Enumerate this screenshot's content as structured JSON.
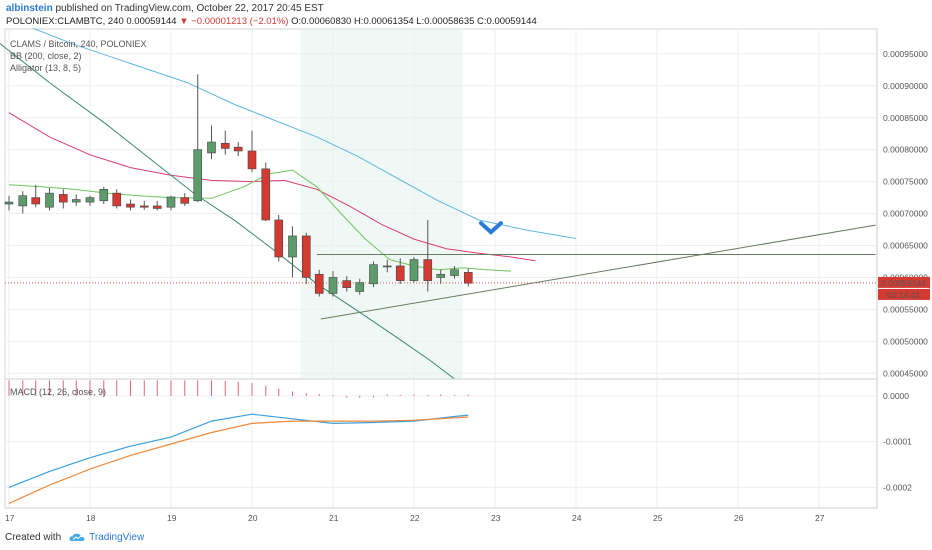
{
  "header": {
    "author": "albinstein",
    "published_text": " published on TradingView.com, October 22, 2017 20:45 EST",
    "symbol_text": "POLONIEX:CLAMBTC, 240 0.00059144",
    "change_text": " ▼ −0.00001213 (−2.01%)",
    "ohlc_text": " O:0.00060830 H:0.00061354 L:0.00058635 C:0.00059144"
  },
  "studies": {
    "main": "CLAMS / Bitcoin, 240, POLONIEX",
    "bb": "BB (200, close, 2)",
    "alligator": "Alligator (13, 8, 5)",
    "macd": "MACD (12, 26, close, 9)"
  },
  "price_badge": "0.00059144",
  "time_badge": "02:14:41",
  "footer": {
    "created": "Created with",
    "brand": "TradingView"
  },
  "colors": {
    "up": "#5d9b6c",
    "down": "#d33b32",
    "bb_upper": "#5fb8e0",
    "bb_mid": "#d83d6e",
    "bb_lower": "#3a8a6e",
    "alligator": "#6dc45c",
    "macd": "#3aa0dc",
    "signal": "#f08a3c",
    "trendline": "#667d5e"
  },
  "chart_data": [
    {
      "type": "candlestick",
      "x_axis": {
        "ticks": [
          "17",
          "18",
          "19",
          "20",
          "21",
          "22",
          "23",
          "24",
          "25",
          "26",
          "27"
        ],
        "range": [
          17,
          27.7
        ]
      },
      "y_axis": {
        "range": [
          0.000441,
          0.000989
        ],
        "ticks": [
          "0.00095000",
          "0.00090000",
          "0.00085000",
          "0.00080000",
          "0.00075000",
          "0.00070000",
          "0.00065000",
          "0.00060000",
          "0.00055000",
          "0.00050000",
          "0.00045000"
        ],
        "tick_values": [
          0.00095,
          0.0009,
          0.00085,
          0.0008,
          0.00075,
          0.0007,
          0.00065,
          0.0006,
          0.00055,
          0.0005,
          0.00045
        ]
      },
      "grid": true,
      "candles": [
        {
          "t": 17.0,
          "o": 0.000715,
          "h": 0.000728,
          "l": 0.000705,
          "c": 0.000718
        },
        {
          "t": 17.17,
          "o": 0.000712,
          "h": 0.000735,
          "l": 0.0007,
          "c": 0.000728
        },
        {
          "t": 17.33,
          "o": 0.000725,
          "h": 0.000745,
          "l": 0.00071,
          "c": 0.000715
        },
        {
          "t": 17.5,
          "o": 0.00071,
          "h": 0.00074,
          "l": 0.000705,
          "c": 0.000732
        },
        {
          "t": 17.67,
          "o": 0.00073,
          "h": 0.000738,
          "l": 0.000708,
          "c": 0.000718
        },
        {
          "t": 17.83,
          "o": 0.000718,
          "h": 0.00073,
          "l": 0.000712,
          "c": 0.000722
        },
        {
          "t": 18.0,
          "o": 0.000718,
          "h": 0.000728,
          "l": 0.000712,
          "c": 0.000725
        },
        {
          "t": 18.17,
          "o": 0.00072,
          "h": 0.000742,
          "l": 0.000715,
          "c": 0.000738
        },
        {
          "t": 18.33,
          "o": 0.000732,
          "h": 0.000738,
          "l": 0.000708,
          "c": 0.000712
        },
        {
          "t": 18.5,
          "o": 0.000715,
          "h": 0.000722,
          "l": 0.000705,
          "c": 0.00071
        },
        {
          "t": 18.67,
          "o": 0.000712,
          "h": 0.00072,
          "l": 0.000706,
          "c": 0.00071
        },
        {
          "t": 18.83,
          "o": 0.000712,
          "h": 0.00072,
          "l": 0.000705,
          "c": 0.000708
        },
        {
          "t": 19.0,
          "o": 0.00071,
          "h": 0.000728,
          "l": 0.000705,
          "c": 0.000726
        },
        {
          "t": 19.17,
          "o": 0.000725,
          "h": 0.000732,
          "l": 0.000712,
          "c": 0.000716
        },
        {
          "t": 19.33,
          "o": 0.00072,
          "h": 0.000918,
          "l": 0.000718,
          "c": 0.0008
        },
        {
          "t": 19.5,
          "o": 0.000795,
          "h": 0.000838,
          "l": 0.000785,
          "c": 0.000812
        },
        {
          "t": 19.67,
          "o": 0.00081,
          "h": 0.00083,
          "l": 0.000792,
          "c": 0.000802
        },
        {
          "t": 19.83,
          "o": 0.000804,
          "h": 0.000812,
          "l": 0.00079,
          "c": 0.000798
        },
        {
          "t": 20.0,
          "o": 0.000798,
          "h": 0.00083,
          "l": 0.000765,
          "c": 0.00077
        },
        {
          "t": 20.17,
          "o": 0.00077,
          "h": 0.00078,
          "l": 0.000688,
          "c": 0.00069
        },
        {
          "t": 20.33,
          "o": 0.00069,
          "h": 0.000698,
          "l": 0.000625,
          "c": 0.000632
        },
        {
          "t": 20.5,
          "o": 0.000632,
          "h": 0.00068,
          "l": 0.0006,
          "c": 0.000665
        },
        {
          "t": 20.67,
          "o": 0.000665,
          "h": 0.00067,
          "l": 0.00059,
          "c": 0.0006
        },
        {
          "t": 20.83,
          "o": 0.000605,
          "h": 0.000612,
          "l": 0.00057,
          "c": 0.000575
        },
        {
          "t": 21.0,
          "o": 0.000575,
          "h": 0.00061,
          "l": 0.00057,
          "c": 0.0006
        },
        {
          "t": 21.17,
          "o": 0.000595,
          "h": 0.000602,
          "l": 0.000578,
          "c": 0.000584
        },
        {
          "t": 21.33,
          "o": 0.000578,
          "h": 0.000598,
          "l": 0.000573,
          "c": 0.000592
        },
        {
          "t": 21.5,
          "o": 0.00059,
          "h": 0.000625,
          "l": 0.000585,
          "c": 0.00062
        },
        {
          "t": 21.67,
          "o": 0.000618,
          "h": 0.000628,
          "l": 0.000608,
          "c": 0.000618
        },
        {
          "t": 21.83,
          "o": 0.000618,
          "h": 0.00063,
          "l": 0.00059,
          "c": 0.000595
        },
        {
          "t": 22.0,
          "o": 0.000595,
          "h": 0.000632,
          "l": 0.000592,
          "c": 0.000628
        },
        {
          "t": 22.17,
          "o": 0.000628,
          "h": 0.00069,
          "l": 0.000578,
          "c": 0.000595
        },
        {
          "t": 22.33,
          "o": 0.0006,
          "h": 0.000612,
          "l": 0.00059,
          "c": 0.000605
        },
        {
          "t": 22.5,
          "o": 0.000603,
          "h": 0.000618,
          "l": 0.000598,
          "c": 0.000612
        },
        {
          "t": 22.67,
          "o": 0.000608,
          "h": 0.000614,
          "l": 0.000586,
          "c": 0.000591
        }
      ],
      "bb_upper": [
        [
          17.3,
          0.00099
        ],
        [
          17.8,
          0.000965
        ],
        [
          18.5,
          0.000935
        ],
        [
          19.2,
          0.000905
        ],
        [
          19.8,
          0.00087
        ],
        [
          20.3,
          0.000845
        ],
        [
          20.8,
          0.00082
        ],
        [
          21.3,
          0.00079
        ],
        [
          21.8,
          0.000755
        ],
        [
          22.3,
          0.00072
        ],
        [
          22.8,
          0.00069
        ],
        [
          23.4,
          0.000674
        ],
        [
          24.0,
          0.000661
        ]
      ],
      "bb_middle": [
        [
          17.0,
          0.000858
        ],
        [
          17.5,
          0.00082
        ],
        [
          18.0,
          0.000792
        ],
        [
          18.5,
          0.000772
        ],
        [
          19.0,
          0.00076
        ],
        [
          19.5,
          0.000752
        ],
        [
          20.0,
          0.00075
        ],
        [
          20.4,
          0.000752
        ],
        [
          20.8,
          0.000738
        ],
        [
          21.2,
          0.000712
        ],
        [
          21.6,
          0.000683
        ],
        [
          22.0,
          0.00066
        ],
        [
          22.4,
          0.000645
        ],
        [
          22.8,
          0.000638
        ],
        [
          23.2,
          0.000632
        ],
        [
          23.5,
          0.000626
        ]
      ],
      "bb_lower": [
        [
          16.8,
          0.000975
        ],
        [
          17.5,
          0.000905
        ],
        [
          18.2,
          0.00084
        ],
        [
          18.8,
          0.00078
        ],
        [
          19.3,
          0.00073
        ],
        [
          19.8,
          0.000688
        ],
        [
          20.3,
          0.00064
        ],
        [
          20.8,
          0.00059
        ],
        [
          21.3,
          0.000548
        ],
        [
          21.8,
          0.000505
        ],
        [
          22.2,
          0.00047
        ],
        [
          22.5,
          0.000441
        ]
      ],
      "alligator": [
        [
          17.0,
          0.000745
        ],
        [
          17.4,
          0.000742
        ],
        [
          17.8,
          0.000738
        ],
        [
          18.2,
          0.000732
        ],
        [
          18.6,
          0.000728
        ],
        [
          19.0,
          0.000725
        ],
        [
          19.5,
          0.000724
        ],
        [
          19.9,
          0.000742
        ],
        [
          20.2,
          0.000762
        ],
        [
          20.5,
          0.000768
        ],
        [
          20.8,
          0.000742
        ],
        [
          21.1,
          0.0007
        ],
        [
          21.4,
          0.00066
        ],
        [
          21.7,
          0.000628
        ],
        [
          22.0,
          0.000618
        ],
        [
          22.3,
          0.000612
        ],
        [
          22.6,
          0.000615
        ],
        [
          22.9,
          0.000612
        ],
        [
          23.2,
          0.00061
        ]
      ],
      "trendlines": [
        {
          "from": [
            20.8,
            0.000636
          ],
          "to": [
            27.7,
            0.000636
          ]
        },
        {
          "from": [
            20.85,
            0.000535
          ],
          "to": [
            27.7,
            0.000682
          ]
        }
      ],
      "arrow": {
        "t": 22.95,
        "price": 0.00066,
        "direction": "down"
      },
      "highlight_range": [
        20.6,
        22.6
      ],
      "last_price": 0.00059144
    },
    {
      "type": "line",
      "name": "MACD",
      "y_axis": {
        "range": [
          -0.000245,
          3.7e-05
        ],
        "ticks": [
          "0.0000",
          "-0.0001",
          "-0.0002"
        ],
        "tick_values": [
          0,
          -0.0001,
          -0.0002
        ]
      },
      "macd": [
        [
          17.0,
          -0.0002
        ],
        [
          17.5,
          -0.000165
        ],
        [
          18.0,
          -0.000135
        ],
        [
          18.5,
          -0.00011
        ],
        [
          19.0,
          -9e-05
        ],
        [
          19.5,
          -5.5e-05
        ],
        [
          20.0,
          -4e-05
        ],
        [
          20.5,
          -5e-05
        ],
        [
          21.0,
          -6e-05
        ],
        [
          21.5,
          -5.8e-05
        ],
        [
          22.0,
          -5.5e-05
        ],
        [
          22.5,
          -4.5e-05
        ],
        [
          22.67,
          -4.2e-05
        ]
      ],
      "signal": [
        [
          17.0,
          -0.000235
        ],
        [
          17.5,
          -0.000195
        ],
        [
          18.0,
          -0.00016
        ],
        [
          18.5,
          -0.00013
        ],
        [
          19.0,
          -0.000105
        ],
        [
          19.5,
          -8e-05
        ],
        [
          20.0,
          -6e-05
        ],
        [
          20.5,
          -5.5e-05
        ],
        [
          21.0,
          -5.5e-05
        ],
        [
          21.5,
          -5.5e-05
        ],
        [
          22.0,
          -5.3e-05
        ],
        [
          22.5,
          -4.8e-05
        ],
        [
          22.67,
          -4.6e-05
        ]
      ],
      "histogram": [
        {
          "t": 17.0,
          "v": 3.4e-05
        },
        {
          "t": 17.17,
          "v": 3.4e-05
        },
        {
          "t": 17.33,
          "v": 3.4e-05
        },
        {
          "t": 17.5,
          "v": 3.4e-05
        },
        {
          "t": 17.67,
          "v": 3.4e-05
        },
        {
          "t": 17.83,
          "v": 3.4e-05
        },
        {
          "t": 18.0,
          "v": 3.4e-05
        },
        {
          "t": 18.17,
          "v": 3.4e-05
        },
        {
          "t": 18.33,
          "v": 3.4e-05
        },
        {
          "t": 18.5,
          "v": 3.4e-05
        },
        {
          "t": 18.67,
          "v": 3.4e-05
        },
        {
          "t": 18.83,
          "v": 3.4e-05
        },
        {
          "t": 19.0,
          "v": 3.4e-05
        },
        {
          "t": 19.17,
          "v": 3.4e-05
        },
        {
          "t": 19.33,
          "v": 3.4e-05
        },
        {
          "t": 19.5,
          "v": 3.4e-05
        },
        {
          "t": 19.67,
          "v": 3.3e-05
        },
        {
          "t": 19.83,
          "v": 3.1e-05
        },
        {
          "t": 20.0,
          "v": 2.8e-05
        },
        {
          "t": 20.17,
          "v": 2.2e-05
        },
        {
          "t": 20.33,
          "v": 1.6e-05
        },
        {
          "t": 20.5,
          "v": 1e-05
        },
        {
          "t": 20.67,
          "v": 6e-06
        },
        {
          "t": 20.83,
          "v": 4e-06
        },
        {
          "t": 21.0,
          "v": 2e-06
        },
        {
          "t": 21.17,
          "v": -4e-06
        },
        {
          "t": 21.33,
          "v": -4e-06
        },
        {
          "t": 21.5,
          "v": -3e-06
        },
        {
          "t": 21.67,
          "v": 3e-06
        },
        {
          "t": 21.83,
          "v": 2e-06
        },
        {
          "t": 22.0,
          "v": 3e-06
        },
        {
          "t": 22.17,
          "v": 2e-06
        },
        {
          "t": 22.33,
          "v": 3e-06
        },
        {
          "t": 22.5,
          "v": 2e-06
        },
        {
          "t": 22.67,
          "v": 3e-06
        }
      ]
    }
  ]
}
